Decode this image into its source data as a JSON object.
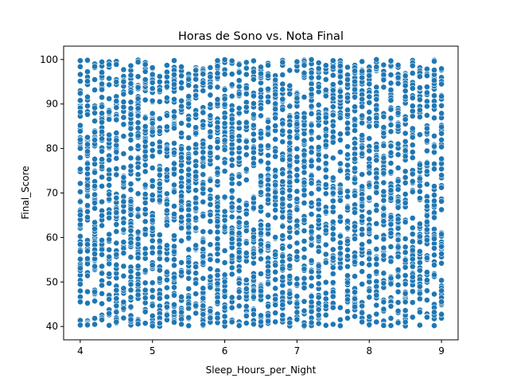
{
  "chart_data": {
    "type": "scatter",
    "title": "Horas de Sono vs. Nota Final",
    "xlabel": "Sleep_Hours_per_Night",
    "ylabel": "Final_Score",
    "xlim": [
      3.77,
      9.23
    ],
    "ylim": [
      37,
      103
    ],
    "xticks": [
      4,
      5,
      6,
      7,
      8,
      9
    ],
    "yticks": [
      40,
      50,
      60,
      70,
      80,
      90,
      100
    ],
    "x_step": 0.1,
    "x_min": 4.0,
    "x_max": 9.0,
    "y_min": 40,
    "y_max": 100,
    "grid": false,
    "legend": "none",
    "point_color": "#1f77b4",
    "series": [
      {
        "distribution": "uniform",
        "note": "dense cloud, columns every 0.1 h from 4.0 to 9.0, scores ~40-100"
      }
    ]
  }
}
